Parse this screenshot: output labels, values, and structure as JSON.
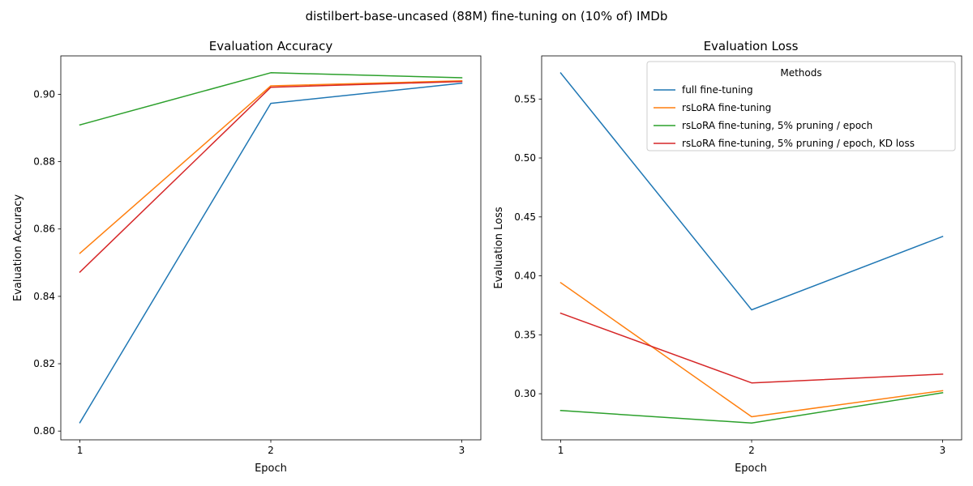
{
  "figure": {
    "suptitle": "distilbert-base-uncased (88M) fine-tuning on (10% of) IMDb"
  },
  "chart_data": [
    {
      "type": "line",
      "title": "Evaluation Accuracy",
      "xlabel": "Epoch",
      "ylabel": "Evaluation Accuracy",
      "x": [
        1,
        2,
        3
      ],
      "xticks": [
        "1",
        "2",
        "3"
      ],
      "xlim": [
        0.9,
        3.1
      ],
      "ylim": [
        0.7974,
        0.9114
      ],
      "yticks": [
        "0.80",
        "0.82",
        "0.84",
        "0.86",
        "0.88",
        "0.90"
      ],
      "grid": false,
      "series": [
        {
          "name": "full fine-tuning",
          "color": "#1f77b4",
          "values": [
            0.8025,
            0.8973,
            0.9033
          ]
        },
        {
          "name": "rsLoRA fine-tuning",
          "color": "#ff7f0e",
          "values": [
            0.8528,
            0.9025,
            0.904
          ]
        },
        {
          "name": "rsLoRA fine-tuning, 5% pruning / epoch",
          "color": "#2ca02c",
          "values": [
            0.8909,
            0.9064,
            0.9049
          ]
        },
        {
          "name": "rsLoRA fine-tuning, 5% pruning / epoch, KD loss",
          "color": "#d62728",
          "values": [
            0.8472,
            0.9021,
            0.9038
          ]
        }
      ]
    },
    {
      "type": "line",
      "title": "Evaluation Loss",
      "xlabel": "Epoch",
      "ylabel": "Evaluation Loss",
      "x": [
        1,
        2,
        3
      ],
      "xticks": [
        "1",
        "2",
        "3"
      ],
      "xlim": [
        0.9,
        3.1
      ],
      "ylim": [
        0.2609,
        0.5866
      ],
      "yticks": [
        "0.30",
        "0.35",
        "0.40",
        "0.45",
        "0.50",
        "0.55"
      ],
      "grid": false,
      "legend": {
        "title": "Methods",
        "placement": "top-right"
      },
      "series": [
        {
          "name": "full fine-tuning",
          "color": "#1f77b4",
          "values": [
            0.5721,
            0.3712,
            0.4334
          ]
        },
        {
          "name": "rsLoRA fine-tuning",
          "color": "#ff7f0e",
          "values": [
            0.3942,
            0.2805,
            0.3026
          ]
        },
        {
          "name": "rsLoRA fine-tuning, 5% pruning / epoch",
          "color": "#2ca02c",
          "values": [
            0.2858,
            0.2751,
            0.3008
          ]
        },
        {
          "name": "rsLoRA fine-tuning, 5% pruning / epoch, KD loss",
          "color": "#d62728",
          "values": [
            0.3683,
            0.3092,
            0.3166
          ]
        }
      ]
    }
  ]
}
